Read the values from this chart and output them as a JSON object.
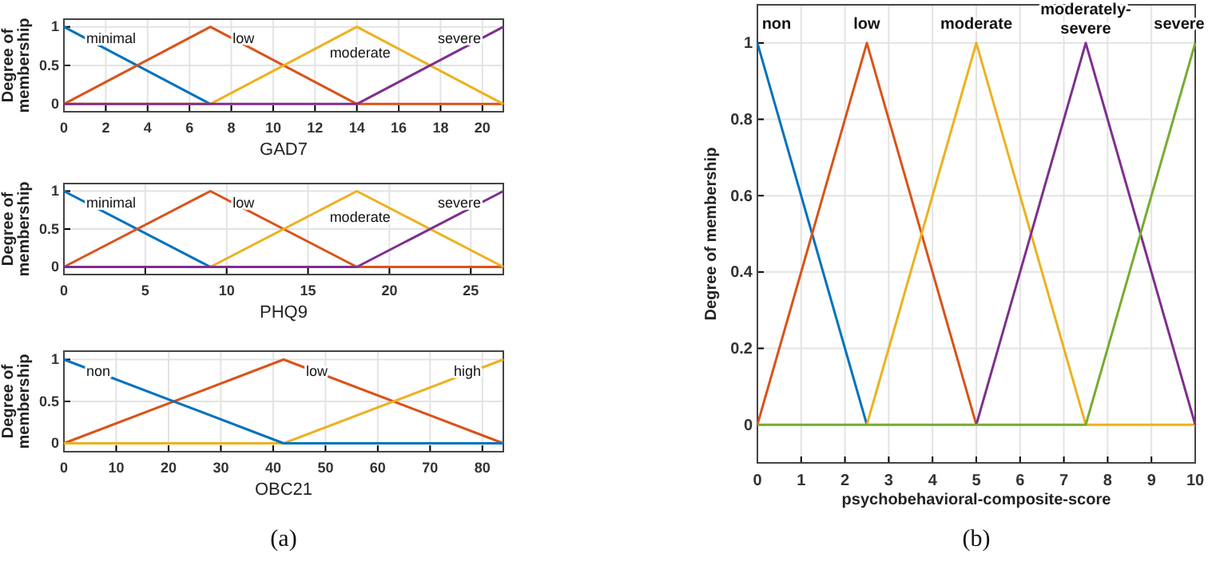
{
  "chart_data": [
    {
      "type": "line",
      "xlabel": "GAD7",
      "ylabel": "Degree of membership",
      "xlim": [
        0,
        21
      ],
      "ylim": [
        -0.1,
        1.1
      ],
      "xticks": [
        0,
        2,
        4,
        6,
        8,
        10,
        12,
        14,
        16,
        18,
        20
      ],
      "yticks": [
        0,
        0.5,
        1
      ],
      "grid": true,
      "line_style": "solid",
      "series": [
        {
          "name": "minimal",
          "color": "#0072bd",
          "x": [
            0,
            7
          ],
          "values": [
            1,
            0
          ]
        },
        {
          "name": "low",
          "color": "#d95319",
          "x": [
            0,
            7,
            14,
            21
          ],
          "values": [
            0,
            1,
            0,
            0
          ]
        },
        {
          "name": "moderate",
          "color": "#edb120",
          "x": [
            0,
            7,
            14,
            21
          ],
          "values": [
            0,
            0,
            1,
            0
          ]
        },
        {
          "name": "severe",
          "color": "#7e2f8e",
          "x": [
            0,
            14,
            21
          ],
          "values": [
            0,
            0,
            1
          ]
        }
      ]
    },
    {
      "type": "line",
      "xlabel": "PHQ9",
      "ylabel": "Degree of membership",
      "xlim": [
        0,
        27
      ],
      "ylim": [
        -0.1,
        1.1
      ],
      "xticks": [
        0,
        5,
        10,
        15,
        20,
        25
      ],
      "yticks": [
        0,
        0.5,
        1
      ],
      "grid": true,
      "line_style": "solid",
      "series": [
        {
          "name": "minimal",
          "color": "#0072bd",
          "x": [
            0,
            9
          ],
          "values": [
            1,
            0
          ]
        },
        {
          "name": "low",
          "color": "#d95319",
          "x": [
            0,
            9,
            18,
            27
          ],
          "values": [
            0,
            1,
            0,
            0
          ]
        },
        {
          "name": "moderate",
          "color": "#edb120",
          "x": [
            0,
            9,
            18,
            27
          ],
          "values": [
            0,
            0,
            1,
            0
          ]
        },
        {
          "name": "severe",
          "color": "#7e2f8e",
          "x": [
            0,
            18,
            27
          ],
          "values": [
            0,
            0,
            1
          ]
        }
      ]
    },
    {
      "type": "line",
      "xlabel": "OBC21",
      "ylabel": "Degree of membership",
      "xlim": [
        0,
        84
      ],
      "ylim": [
        -0.1,
        1.1
      ],
      "xticks": [
        0,
        10,
        20,
        30,
        40,
        50,
        60,
        70,
        80
      ],
      "yticks": [
        0,
        0.5,
        1
      ],
      "grid": true,
      "line_style": "solid",
      "annotations": [
        "(a)"
      ],
      "series": [
        {
          "name": "low",
          "color": "#d95319",
          "x": [
            0,
            42,
            84
          ],
          "values": [
            0,
            1,
            0
          ]
        },
        {
          "name": "high",
          "color": "#edb120",
          "x": [
            0,
            42,
            84
          ],
          "values": [
            0,
            0,
            1
          ]
        },
        {
          "name": "non",
          "color": "#0072bd",
          "x": [
            0,
            42,
            84
          ],
          "values": [
            1,
            0,
            0
          ]
        }
      ]
    },
    {
      "type": "line",
      "xlabel": "psychobehavioral-composite-score",
      "ylabel": "Degree of membership",
      "xlim": [
        0,
        10
      ],
      "ylim": [
        -0.1,
        1.1
      ],
      "xticks": [
        0,
        1,
        2,
        3,
        4,
        5,
        6,
        7,
        8,
        9,
        10
      ],
      "yticks": [
        0,
        0.2,
        0.4,
        0.6,
        0.8,
        1
      ],
      "grid": true,
      "line_style": "solid",
      "annotations": [
        "(b)"
      ],
      "series": [
        {
          "name": "non",
          "color": "#0072bd",
          "x": [
            0,
            2.5
          ],
          "values": [
            1,
            0
          ]
        },
        {
          "name": "low",
          "color": "#d95319",
          "x": [
            0,
            2.5,
            5
          ],
          "values": [
            0,
            1,
            0
          ]
        },
        {
          "name": "moderate",
          "color": "#edb120",
          "x": [
            2.5,
            5,
            7.5,
            10
          ],
          "values": [
            0,
            1,
            0,
            0
          ]
        },
        {
          "name": "moderately-severe",
          "color": "#7e2f8e",
          "x": [
            5,
            7.5,
            10
          ],
          "values": [
            0,
            1,
            0
          ]
        },
        {
          "name": "severe",
          "color": "#77ac30",
          "x": [
            0,
            7.5,
            10
          ],
          "values": [
            0,
            0,
            1
          ]
        }
      ]
    }
  ]
}
